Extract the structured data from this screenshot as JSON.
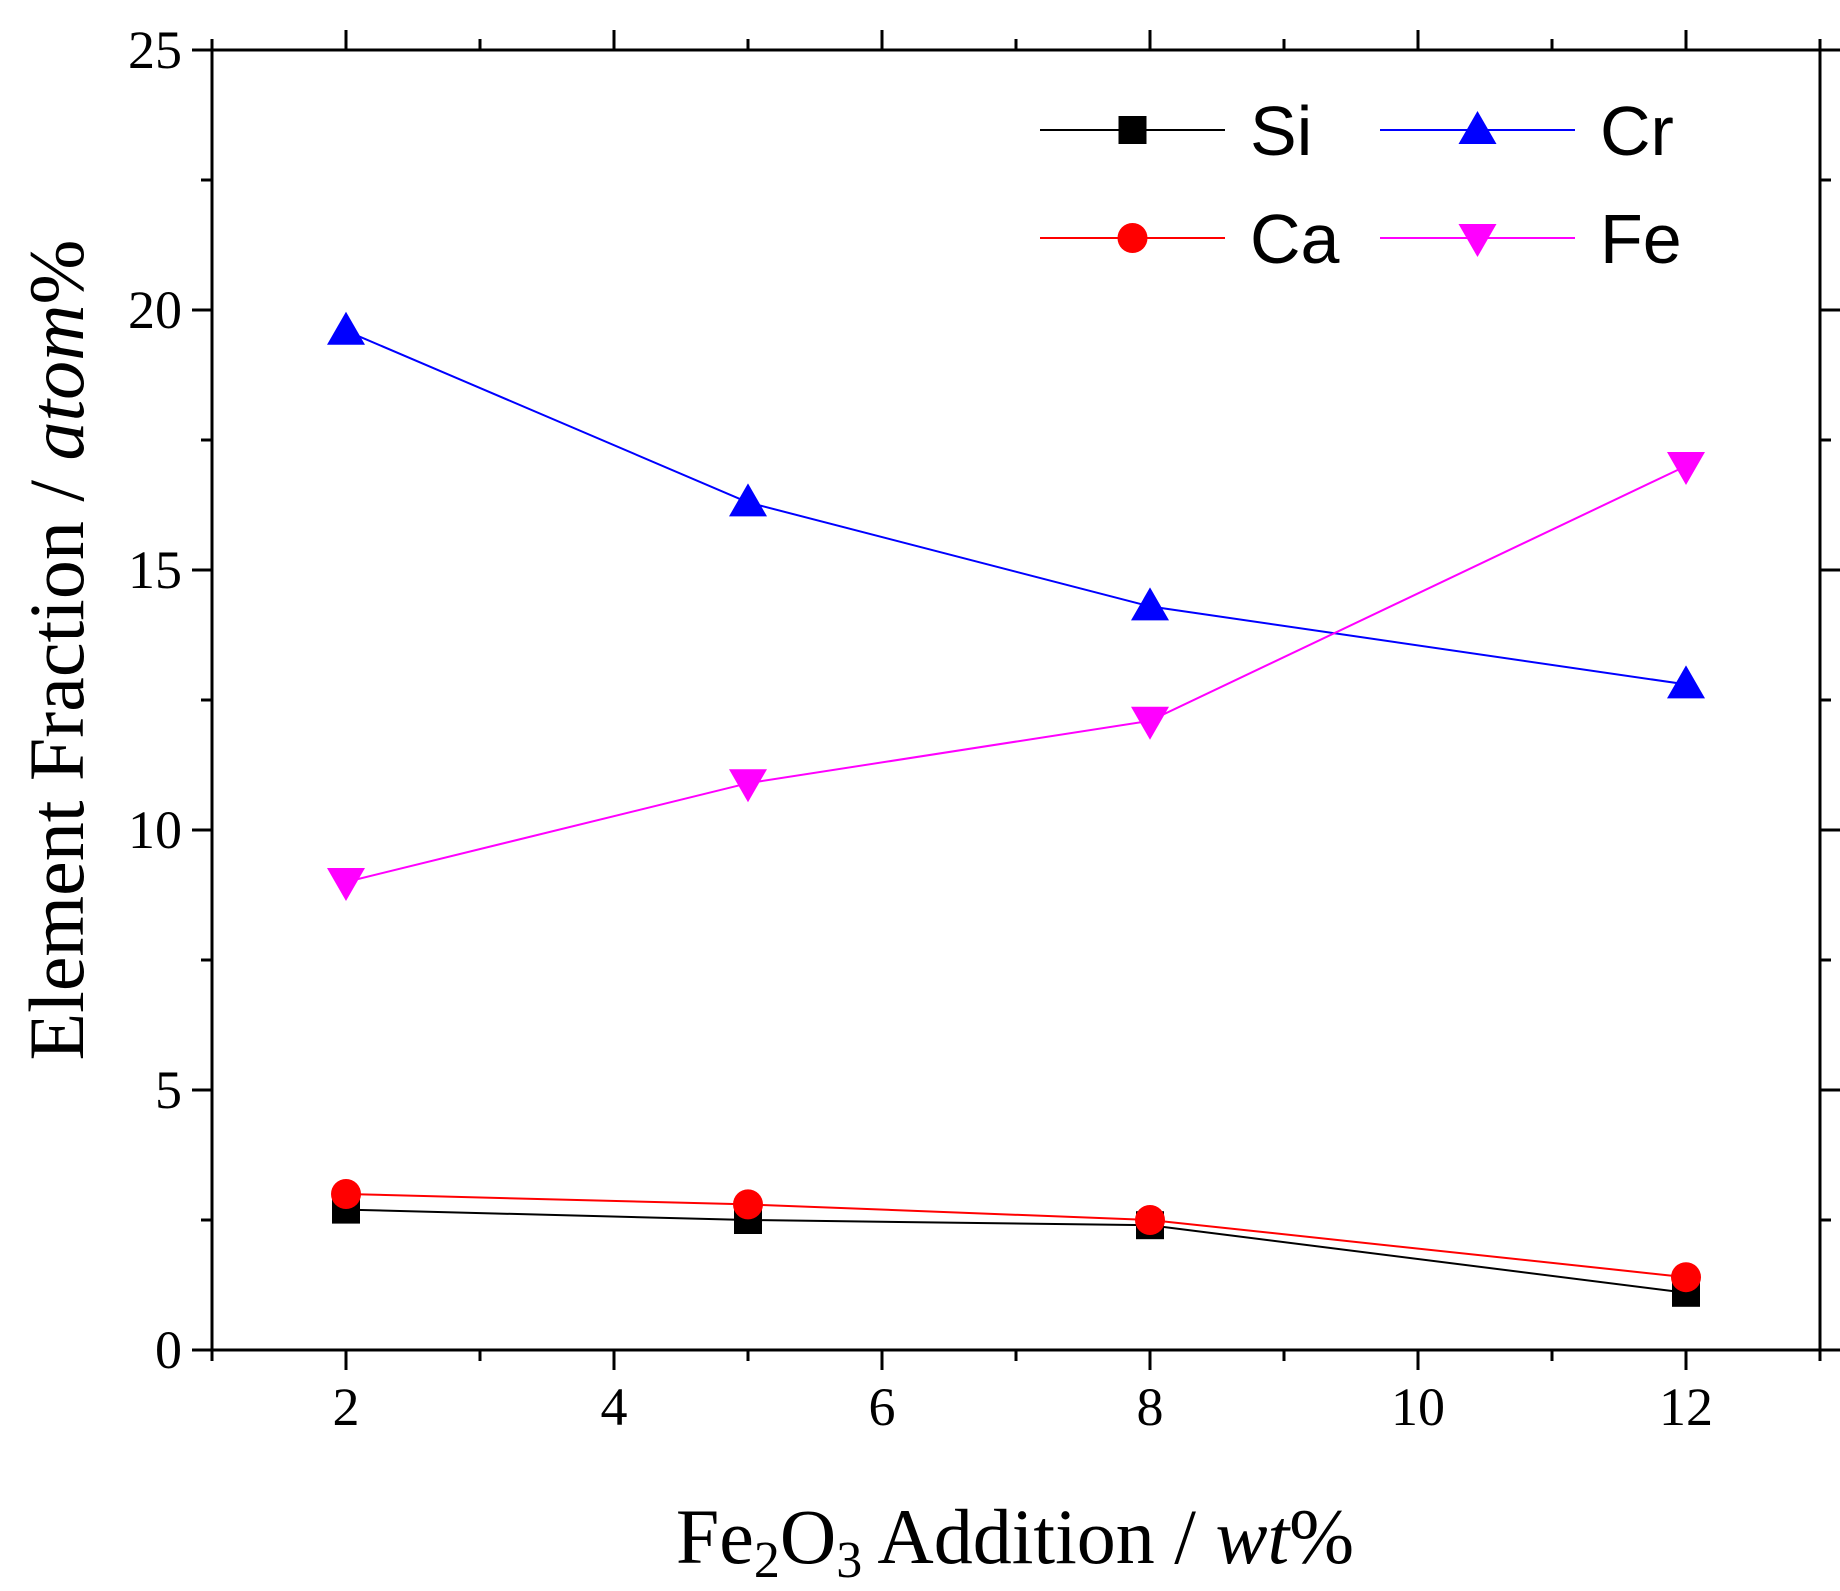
{
  "chart_data": {
    "type": "line",
    "title": "",
    "xlabel": {
      "prefix": "Fe",
      "sub1": "2",
      "mid": "O",
      "sub2": "3",
      "suffix": " Addition / ",
      "italic": "wt",
      "end": "%"
    },
    "ylabel": {
      "prefix": "Element Fraction / ",
      "italic": "atom",
      "end": "%"
    },
    "xlim": [
      1,
      13
    ],
    "ylim": [
      0,
      25
    ],
    "xticks": [
      2,
      4,
      6,
      8,
      10,
      12
    ],
    "yticks": [
      0,
      5,
      10,
      15,
      20,
      25
    ],
    "x": [
      2,
      5,
      8,
      12
    ],
    "series": [
      {
        "name": "Si",
        "color": "#000000",
        "marker": "square",
        "values": [
          2.7,
          2.5,
          2.4,
          1.1
        ]
      },
      {
        "name": "Ca",
        "color": "#ff0000",
        "marker": "circle",
        "values": [
          3.0,
          2.8,
          2.5,
          1.4
        ]
      },
      {
        "name": "Cr",
        "color": "#0000ff",
        "marker": "triangle-up",
        "values": [
          19.6,
          16.3,
          14.3,
          12.8
        ]
      },
      {
        "name": "Fe",
        "color": "#ff00ff",
        "marker": "triangle-down",
        "values": [
          9.0,
          10.9,
          12.1,
          17.0
        ]
      }
    ],
    "legend": {
      "placement": "top-right",
      "order": [
        "Si",
        "Cr",
        "Ca",
        "Fe"
      ]
    },
    "grid": false
  }
}
